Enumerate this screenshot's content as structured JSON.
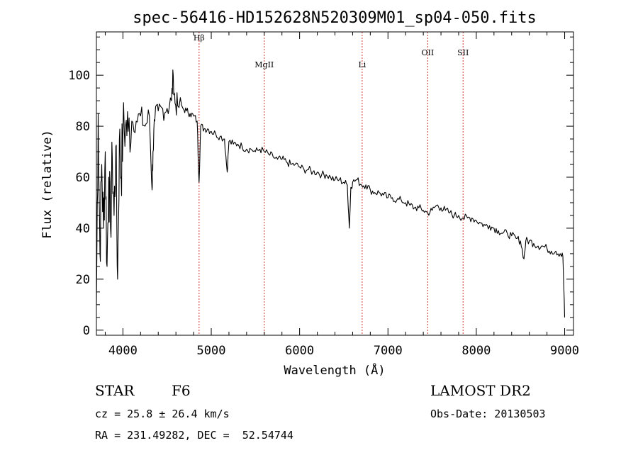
{
  "chart_data": {
    "type": "line",
    "title": "spec-56416-HD152628N520309M01_sp04-050.fits",
    "xlabel": "Wavelength (Å)",
    "ylabel": "Flux (relative)",
    "xlim": [
      3700,
      9100
    ],
    "ylim": [
      -2,
      117
    ],
    "xticks": [
      4000,
      5000,
      6000,
      7000,
      8000,
      9000
    ],
    "yticks": [
      0,
      20,
      40,
      60,
      80,
      100
    ],
    "grid": false,
    "line_color": "#000000",
    "marker_color": "#cc3333",
    "series": [
      {
        "x": [
          3700,
          3720,
          3740,
          3760,
          3780,
          3800,
          3820,
          3840,
          3860,
          3880,
          3900,
          3920,
          3940,
          3960,
          3980,
          4000,
          4030,
          4060,
          4100,
          4150,
          4200,
          4250,
          4300,
          4330,
          4340,
          4360,
          4400,
          4450,
          4500,
          4550,
          4570,
          4590,
          4620,
          4680,
          4720,
          4760,
          4800,
          4840,
          4862,
          4880,
          4920,
          4960,
          5000,
          5050,
          5100,
          5150,
          5180,
          5200,
          5250,
          5300,
          5350,
          5400,
          5450,
          5500,
          5550,
          5600,
          5650,
          5700,
          5750,
          5800,
          5850,
          5900,
          5950,
          6000,
          6050,
          6100,
          6150,
          6200,
          6250,
          6300,
          6350,
          6400,
          6450,
          6500,
          6540,
          6563,
          6580,
          6600,
          6650,
          6700,
          6750,
          6800,
          6850,
          6900,
          6950,
          7000,
          7050,
          7100,
          7150,
          7200,
          7250,
          7300,
          7350,
          7400,
          7450,
          7500,
          7550,
          7600,
          7650,
          7700,
          7750,
          7800,
          7850,
          7900,
          7950,
          8000,
          8050,
          8100,
          8150,
          8200,
          8250,
          8300,
          8350,
          8400,
          8450,
          8500,
          8540,
          8560,
          8600,
          8650,
          8700,
          8750,
          8800,
          8850,
          8900,
          8950,
          8980,
          9000
        ],
        "y": [
          10,
          85,
          30,
          65,
          40,
          70,
          25,
          60,
          40,
          68,
          45,
          72,
          20,
          75,
          60,
          78,
          80,
          78,
          82,
          82,
          84,
          80,
          84,
          55,
          70,
          82,
          86,
          87,
          87,
          90,
          100,
          89,
          88,
          87,
          86,
          85,
          84,
          82,
          58,
          80,
          79,
          79,
          78,
          77,
          76,
          75,
          62,
          74,
          73,
          73,
          72,
          71,
          71,
          70,
          71,
          70,
          69,
          68,
          67,
          67,
          66,
          65,
          65,
          64,
          63,
          63,
          62,
          62,
          61,
          61,
          60,
          59,
          59,
          58,
          57,
          40,
          56,
          58,
          59,
          57,
          57,
          55,
          54,
          54,
          53,
          52,
          52,
          51,
          51,
          50,
          49,
          48,
          48,
          47,
          46,
          47,
          49,
          48,
          47,
          46,
          45,
          45,
          44,
          44,
          44,
          43,
          42,
          41,
          41,
          40,
          39,
          38,
          38,
          37,
          36,
          35,
          28,
          35,
          35,
          34,
          33,
          33,
          32,
          31,
          31,
          30,
          29,
          5
        ]
      }
    ],
    "line_markers": [
      {
        "label": "Hβ",
        "x": 4862
      },
      {
        "label": "MgII",
        "x": 5600
      },
      {
        "label": "Li",
        "x": 6708
      },
      {
        "label": "OII",
        "x": 7450
      },
      {
        "label": "SII",
        "x": 7850
      }
    ]
  },
  "info": {
    "obj_class": "STAR",
    "subclass": "F6",
    "survey": "LAMOST DR2",
    "cz": "cz = 25.8 ± 26.4 km/s",
    "obs_date": "Obs-Date: 20130503",
    "radec": "RA = 231.49282, DEC =  52.54744"
  }
}
